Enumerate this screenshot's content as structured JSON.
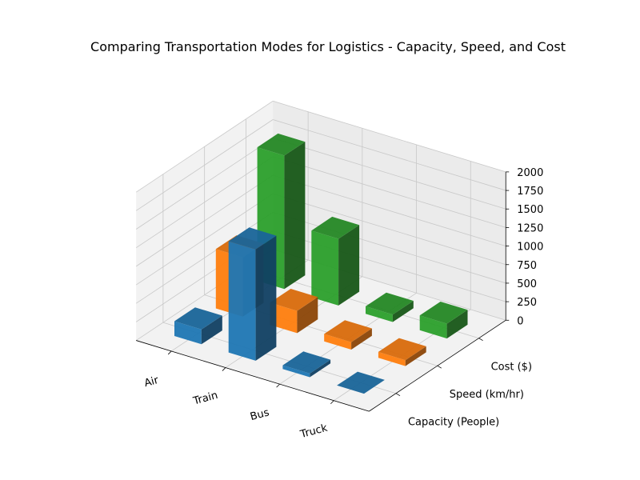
{
  "chart_data": {
    "type": "bar3d",
    "title": "Comparing Transportation Modes for Logistics - Capacity, Speed, and Cost",
    "categories": [
      "Air",
      "Train",
      "Bus",
      "Truck"
    ],
    "series": [
      {
        "name": "Capacity (People)",
        "values": [
          200,
          1500,
          50,
          0
        ],
        "color": "#1f77b4"
      },
      {
        "name": "Speed (km/hr)",
        "values": [
          800,
          300,
          100,
          80
        ],
        "color": "#ff7f0e"
      },
      {
        "name": "Cost ($)",
        "values": [
          1800,
          900,
          100,
          200
        ],
        "color": "#2ca02c"
      }
    ],
    "zlim": [
      0,
      2000
    ],
    "zticks": [
      "0",
      "250",
      "500",
      "750",
      "1000",
      "1250",
      "1500",
      "1750",
      "2000"
    ],
    "grid": true
  }
}
